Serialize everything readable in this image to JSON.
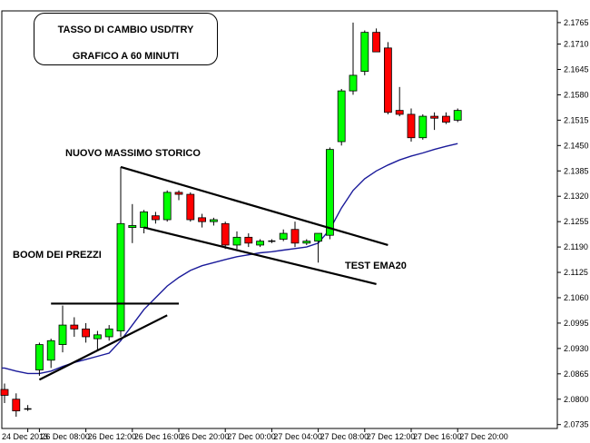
{
  "title_lines": [
    "TASSO DI CAMBIO USD/TRY",
    "GRAFICO A 60 MINUTI"
  ],
  "annotations": {
    "boom": "BOOM DEI PREZZI",
    "massimo": "NUOVO MASSIMO STORICO",
    "test": "TEST EMA20"
  },
  "colors": {
    "bull": "#00ff00",
    "bear": "#ff0000",
    "ema": "#1a1a9a",
    "trendline": "#000000"
  },
  "chart_data": {
    "type": "candlestick",
    "y_axis_labels": [
      "2.1765",
      "2.1710",
      "2.1645",
      "2.1580",
      "2.1515",
      "2.1450",
      "2.1385",
      "2.1320",
      "2.1255",
      "2.1190",
      "2.1125",
      "2.1060",
      "2.0995",
      "2.0930",
      "2.0865",
      "2.0800",
      "2.0735"
    ],
    "x_axis_labels": [
      "24 Dec 2013",
      "26 Dec 08:00",
      "26 Dec 12:00",
      "26 Dec 16:00",
      "26 Dec 20:00",
      "27 Dec 00:00",
      "27 Dec 04:00",
      "27 Dec 08:00",
      "27 Dec 12:00",
      "27 Dec 16:00",
      "27 Dec 20:00"
    ],
    "ylim": [
      2.0725,
      2.1795
    ],
    "candles": [
      {
        "o": 2.0825,
        "h": 2.084,
        "l": 2.079,
        "c": 2.081
      },
      {
        "o": 2.08,
        "h": 2.0815,
        "l": 2.0755,
        "c": 2.077
      },
      {
        "o": 2.0775,
        "h": 2.0785,
        "l": 2.077,
        "c": 2.0775
      },
      {
        "o": 2.0875,
        "h": 2.0945,
        "l": 2.086,
        "c": 2.094
      },
      {
        "o": 2.09,
        "h": 2.0955,
        "l": 2.088,
        "c": 2.095
      },
      {
        "o": 2.094,
        "h": 2.104,
        "l": 2.092,
        "c": 2.099
      },
      {
        "o": 2.099,
        "h": 2.101,
        "l": 2.096,
        "c": 2.098
      },
      {
        "o": 2.098,
        "h": 2.0995,
        "l": 2.0945,
        "c": 2.096
      },
      {
        "o": 2.0955,
        "h": 2.0975,
        "l": 2.0925,
        "c": 2.0965
      },
      {
        "o": 2.096,
        "h": 2.099,
        "l": 2.095,
        "c": 2.098
      },
      {
        "o": 2.0975,
        "h": 2.1395,
        "l": 2.096,
        "c": 2.125
      },
      {
        "o": 2.124,
        "h": 2.13,
        "l": 2.12,
        "c": 2.1245
      },
      {
        "o": 2.124,
        "h": 2.1285,
        "l": 2.1225,
        "c": 2.128
      },
      {
        "o": 2.127,
        "h": 2.128,
        "l": 2.125,
        "c": 2.126
      },
      {
        "o": 2.126,
        "h": 2.1335,
        "l": 2.1255,
        "c": 2.133
      },
      {
        "o": 2.133,
        "h": 2.1335,
        "l": 2.131,
        "c": 2.1325
      },
      {
        "o": 2.1325,
        "h": 2.133,
        "l": 2.1255,
        "c": 2.126
      },
      {
        "o": 2.1265,
        "h": 2.1275,
        "l": 2.124,
        "c": 2.1255
      },
      {
        "o": 2.1255,
        "h": 2.1265,
        "l": 2.1245,
        "c": 2.126
      },
      {
        "o": 2.125,
        "h": 2.1255,
        "l": 2.1185,
        "c": 2.1195
      },
      {
        "o": 2.1195,
        "h": 2.123,
        "l": 2.1185,
        "c": 2.1215
      },
      {
        "o": 2.1215,
        "h": 2.1225,
        "l": 2.119,
        "c": 2.12
      },
      {
        "o": 2.1195,
        "h": 2.121,
        "l": 2.119,
        "c": 2.1205
      },
      {
        "o": 2.1205,
        "h": 2.121,
        "l": 2.12,
        "c": 2.1205
      },
      {
        "o": 2.121,
        "h": 2.1235,
        "l": 2.1205,
        "c": 2.1225
      },
      {
        "o": 2.1235,
        "h": 2.1255,
        "l": 2.119,
        "c": 2.12
      },
      {
        "o": 2.12,
        "h": 2.121,
        "l": 2.1195,
        "c": 2.1205
      },
      {
        "o": 2.1205,
        "h": 2.1225,
        "l": 2.115,
        "c": 2.1225
      },
      {
        "o": 2.122,
        "h": 2.1445,
        "l": 2.121,
        "c": 2.144
      },
      {
        "o": 2.146,
        "h": 2.1595,
        "l": 2.145,
        "c": 2.159
      },
      {
        "o": 2.159,
        "h": 2.1765,
        "l": 2.158,
        "c": 2.163
      },
      {
        "o": 2.164,
        "h": 2.1745,
        "l": 2.163,
        "c": 2.174
      },
      {
        "o": 2.174,
        "h": 2.175,
        "l": 2.169,
        "c": 2.169
      },
      {
        "o": 2.17,
        "h": 2.1715,
        "l": 2.153,
        "c": 2.1535
      },
      {
        "o": 2.154,
        "h": 2.16,
        "l": 2.1525,
        "c": 2.153
      },
      {
        "o": 2.153,
        "h": 2.1545,
        "l": 2.146,
        "c": 2.147
      },
      {
        "o": 2.147,
        "h": 2.153,
        "l": 2.1465,
        "c": 2.1525
      },
      {
        "o": 2.1525,
        "h": 2.1535,
        "l": 2.149,
        "c": 2.152
      },
      {
        "o": 2.1525,
        "h": 2.1535,
        "l": 2.1505,
        "c": 2.151
      },
      {
        "o": 2.1515,
        "h": 2.1545,
        "l": 2.151,
        "c": 2.154
      }
    ],
    "ema20": [
      2.088,
      2.0872,
      2.0866,
      2.0866,
      2.0872,
      2.0884,
      2.0894,
      2.0902,
      2.091,
      2.0918,
      2.095,
      2.099,
      2.103,
      2.106,
      2.109,
      2.1112,
      2.113,
      2.1142,
      2.115,
      2.1158,
      2.1165,
      2.117,
      2.1175,
      2.1178,
      2.1182,
      2.1186,
      2.119,
      2.12,
      2.1235,
      2.129,
      2.1335,
      2.1365,
      2.1385,
      2.14,
      2.1413,
      2.1423,
      2.1431,
      2.144,
      2.1448,
      2.1455
    ],
    "trendlines": [
      {
        "from": [
          3,
          2.085
        ],
        "to": [
          14,
          2.1015
        ]
      },
      {
        "from": [
          4,
          2.1045
        ],
        "to": [
          15,
          2.1045
        ]
      },
      {
        "from": [
          10,
          2.1395
        ],
        "to": [
          33,
          2.1195
        ]
      },
      {
        "from": [
          12,
          2.124
        ],
        "to": [
          32,
          2.1095
        ]
      }
    ]
  }
}
